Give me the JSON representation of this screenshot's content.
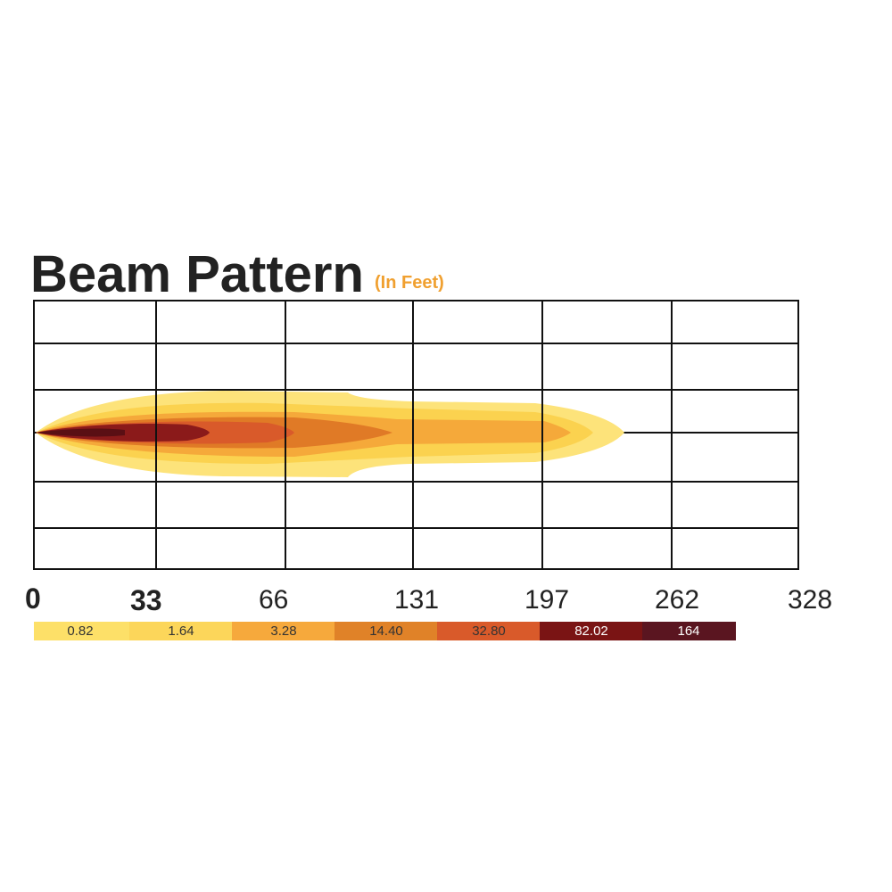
{
  "header": {
    "title": "Beam Pattern",
    "subtitle": "(In Feet)"
  },
  "axis": {
    "labels": [
      "0",
      "33",
      "66",
      "131",
      "197",
      "262",
      "328"
    ]
  },
  "legend": {
    "labels": [
      "0.82",
      "1.64",
      "3.28",
      "14.40",
      "32.80",
      "82.02",
      "164"
    ]
  }
}
